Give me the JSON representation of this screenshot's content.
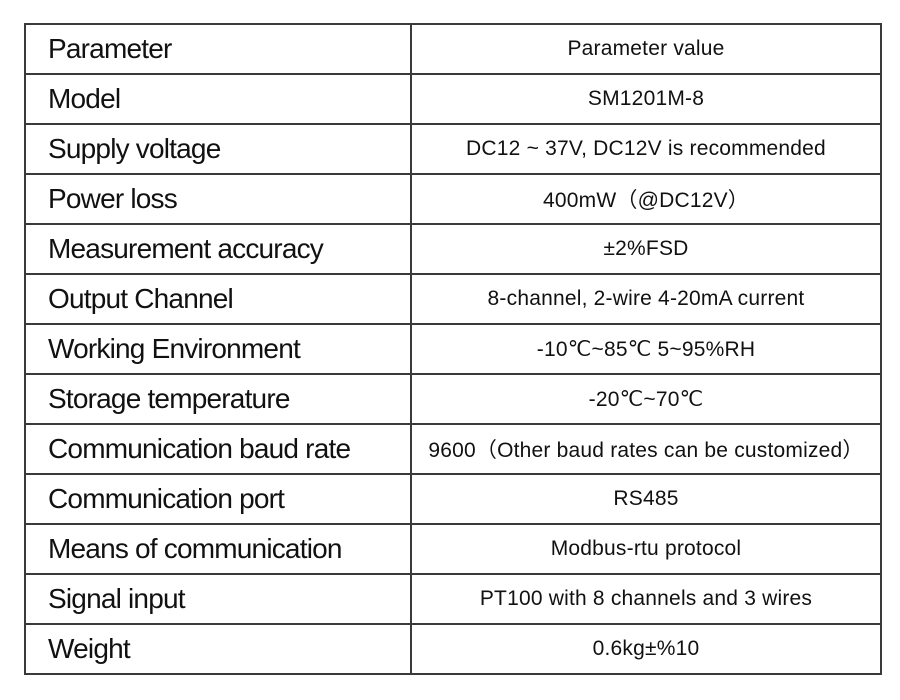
{
  "table": {
    "header": [
      "Parameter",
      "Parameter value"
    ],
    "rows": [
      [
        "Model",
        "SM1201M-8"
      ],
      [
        "Supply voltage",
        "DC12 ~ 37V, DC12V is recommended"
      ],
      [
        "Power loss",
        "400mW（@DC12V）"
      ],
      [
        "Measurement accuracy",
        "±2%FSD"
      ],
      [
        "Output Channel",
        "8-channel, 2-wire 4-20mA current"
      ],
      [
        "Working Environment",
        "-10℃~85℃  5~95%RH"
      ],
      [
        "Storage temperature",
        "-20℃~70℃"
      ],
      [
        "Communication baud rate",
        "9600（Other baud rates can be customized）"
      ],
      [
        "Communication port",
        "RS485"
      ],
      [
        "Means of communication",
        "Modbus-rtu protocol"
      ],
      [
        "Signal input",
        "PT100 with 8 channels and 3 wires"
      ],
      [
        "Weight",
        "0.6kg±%10"
      ]
    ]
  }
}
